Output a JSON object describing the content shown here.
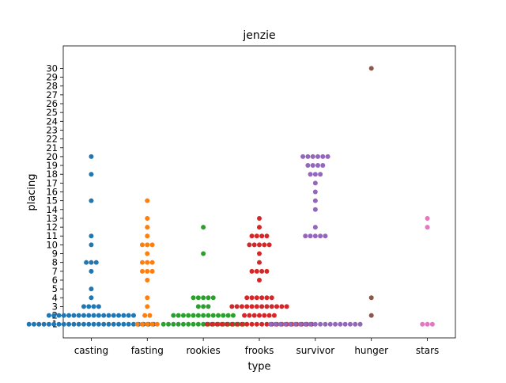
{
  "chart_data": {
    "type": "scatter",
    "style": "swarm",
    "title": "jenzie",
    "xlabel": "type",
    "ylabel": "placing",
    "categories": [
      "casting",
      "fasting",
      "rookies",
      "frooks",
      "survivor",
      "hunger",
      "stars"
    ],
    "yticks": [
      1,
      2,
      3,
      4,
      5,
      6,
      7,
      8,
      9,
      10,
      11,
      12,
      13,
      14,
      15,
      16,
      17,
      18,
      19,
      20,
      21,
      22,
      23,
      24,
      25,
      26,
      27,
      28,
      29,
      30
    ],
    "ylim": [
      -0.55,
      32.55
    ],
    "grid": false,
    "legend": "none",
    "series": [
      {
        "category": "casting",
        "color": "#1f77b4",
        "values": [
          1,
          1,
          1,
          1,
          1,
          1,
          1,
          1,
          1,
          1,
          1,
          1,
          1,
          1,
          1,
          1,
          1,
          1,
          1,
          1,
          1,
          1,
          1,
          1,
          1,
          1,
          2,
          2,
          2,
          2,
          2,
          2,
          2,
          2,
          2,
          2,
          2,
          2,
          2,
          2,
          2,
          2,
          2,
          2,
          3,
          3,
          3,
          3,
          4,
          5,
          7,
          8,
          8,
          8,
          10,
          11,
          15,
          18,
          20
        ]
      },
      {
        "category": "fasting",
        "color": "#ff7f0e",
        "values": [
          1,
          1,
          1,
          1,
          1,
          2,
          2,
          3,
          4,
          6,
          7,
          7,
          7,
          8,
          8,
          8,
          9,
          10,
          10,
          10,
          11,
          12,
          13,
          15
        ]
      },
      {
        "category": "rookies",
        "color": "#2ca02c",
        "values": [
          1,
          1,
          1,
          1,
          1,
          1,
          1,
          1,
          1,
          1,
          1,
          1,
          1,
          1,
          1,
          1,
          1,
          2,
          2,
          2,
          2,
          2,
          2,
          2,
          2,
          2,
          2,
          2,
          2,
          2,
          3,
          3,
          3,
          4,
          4,
          4,
          4,
          4,
          9,
          12
        ]
      },
      {
        "category": "frooks",
        "color": "#d62728",
        "values": [
          1,
          1,
          1,
          1,
          1,
          1,
          1,
          1,
          1,
          1,
          1,
          1,
          1,
          1,
          1,
          1,
          1,
          1,
          1,
          1,
          1,
          1,
          2,
          2,
          2,
          2,
          2,
          2,
          2,
          3,
          3,
          3,
          3,
          3,
          3,
          3,
          3,
          3,
          3,
          3,
          3,
          4,
          4,
          4,
          4,
          4,
          4,
          6,
          7,
          7,
          7,
          7,
          8,
          9,
          10,
          10,
          10,
          10,
          10,
          11,
          11,
          11,
          11,
          12,
          13
        ]
      },
      {
        "category": "survivor",
        "color": "#9467bd",
        "values": [
          1,
          1,
          1,
          1,
          1,
          1,
          1,
          1,
          1,
          1,
          1,
          1,
          1,
          1,
          1,
          1,
          1,
          1,
          1,
          11,
          11,
          11,
          11,
          11,
          12,
          14,
          15,
          16,
          17,
          18,
          18,
          18,
          19,
          19,
          19,
          19,
          20,
          20,
          20,
          20,
          20,
          20
        ]
      },
      {
        "category": "hunger",
        "color": "#8c564b",
        "values": [
          2,
          4,
          30
        ]
      },
      {
        "category": "stars",
        "color": "#e377c2",
        "values": [
          1,
          1,
          1,
          12,
          13
        ]
      }
    ]
  }
}
